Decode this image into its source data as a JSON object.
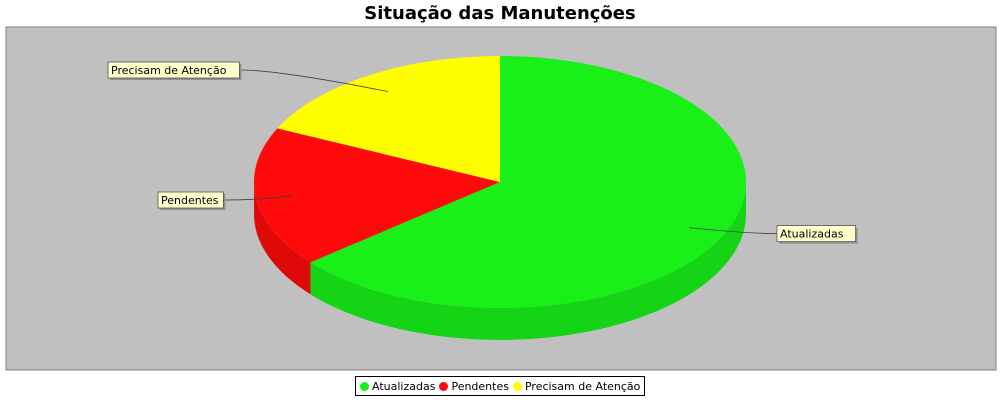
{
  "chart_data": {
    "type": "pie",
    "title": "Situação das Manutenções",
    "legend_position": "bottom",
    "plot_background": "#c0c0c0",
    "slices": [
      {
        "name": "Atualizadas",
        "value": 64,
        "color": "#18f018"
      },
      {
        "name": "Pendentes",
        "value": 18,
        "color": "#ff0a0a"
      },
      {
        "name": "Precisam de Atenção",
        "value": 18,
        "color": "#ffff00"
      }
    ]
  }
}
